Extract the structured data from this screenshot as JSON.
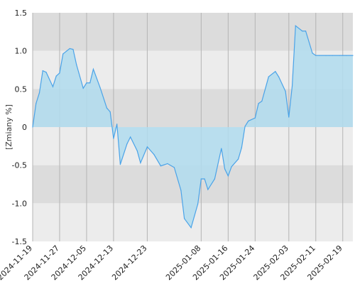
{
  "chart_data": {
    "type": "area",
    "ylabel": "[Zmiany %]",
    "ylim": [
      -1.5,
      1.5
    ],
    "y_ticks": [
      1.5,
      1.0,
      0.5,
      0.0,
      -0.5,
      -1.0,
      -1.5
    ],
    "y_tick_labels": [
      "1.5",
      "1.0",
      "0.5",
      "0",
      "-0.5",
      "-1.0",
      "-1.5"
    ],
    "x_range": [
      "2024-11-19",
      "2025-02-22"
    ],
    "x_ticks": [
      "2024-11-19",
      "2024-11-27",
      "2024-12-05",
      "2024-12-13",
      "2024-12-23",
      "2025-01-08",
      "2025-01-16",
      "2025-01-24",
      "2025-02-03",
      "2025-02-11",
      "2025-02-19"
    ],
    "grid": true,
    "colors": {
      "line": "#4aa3e8",
      "fill": "#b0dcee",
      "band_dark": "#dcdcdc",
      "band_light": "#ececec",
      "vgrid": "#b4b4b4"
    },
    "series": [
      {
        "x": [
          "2024-11-19",
          "2024-11-20",
          "2024-11-21",
          "2024-11-22",
          "2024-11-23",
          "2024-11-25",
          "2024-11-26",
          "2024-11-27",
          "2024-11-28",
          "2024-11-30",
          "2024-12-01",
          "2024-12-02",
          "2024-12-04",
          "2024-12-05",
          "2024-12-06",
          "2024-12-07",
          "2024-12-09",
          "2024-12-11",
          "2024-12-12",
          "2024-12-13",
          "2024-12-14",
          "2024-12-15",
          "2024-12-17",
          "2024-12-18",
          "2024-12-20",
          "2024-12-21",
          "2024-12-23",
          "2024-12-25",
          "2024-12-27",
          "2024-12-29",
          "2024-12-31",
          "2025-01-02",
          "2025-01-03",
          "2025-01-05",
          "2025-01-07",
          "2025-01-08",
          "2025-01-09",
          "2025-01-10",
          "2025-01-12",
          "2025-01-14",
          "2025-01-15",
          "2025-01-16",
          "2025-01-17",
          "2025-01-19",
          "2025-01-20",
          "2025-01-21",
          "2025-01-22",
          "2025-01-24",
          "2025-01-25",
          "2025-01-26",
          "2025-01-28",
          "2025-01-30",
          "2025-01-31",
          "2025-02-02",
          "2025-02-03",
          "2025-02-04",
          "2025-02-05",
          "2025-02-07",
          "2025-02-08",
          "2025-02-10",
          "2025-02-11",
          "2025-02-12",
          "2025-02-14",
          "2025-02-15",
          "2025-02-16",
          "2025-02-18",
          "2025-02-19",
          "2025-02-20",
          "2025-02-22"
        ],
        "values": [
          0.0,
          0.31,
          0.45,
          0.74,
          0.72,
          0.53,
          0.67,
          0.71,
          0.96,
          1.03,
          1.02,
          0.82,
          0.51,
          0.58,
          0.58,
          0.76,
          0.52,
          0.25,
          0.2,
          -0.15,
          0.04,
          -0.49,
          -0.22,
          -0.13,
          -0.31,
          -0.47,
          -0.26,
          -0.36,
          -0.51,
          -0.48,
          -0.53,
          -0.83,
          -1.2,
          -1.32,
          -1.01,
          -0.68,
          -0.68,
          -0.82,
          -0.68,
          -0.28,
          -0.55,
          -0.64,
          -0.52,
          -0.42,
          -0.27,
          0.01,
          0.08,
          0.12,
          0.31,
          0.34,
          0.66,
          0.73,
          0.66,
          0.47,
          0.13,
          0.54,
          1.33,
          1.26,
          1.26,
          0.97,
          0.94,
          0.94,
          0.94,
          0.94,
          0.94,
          0.94,
          0.94,
          0.94,
          0.94
        ]
      }
    ]
  }
}
